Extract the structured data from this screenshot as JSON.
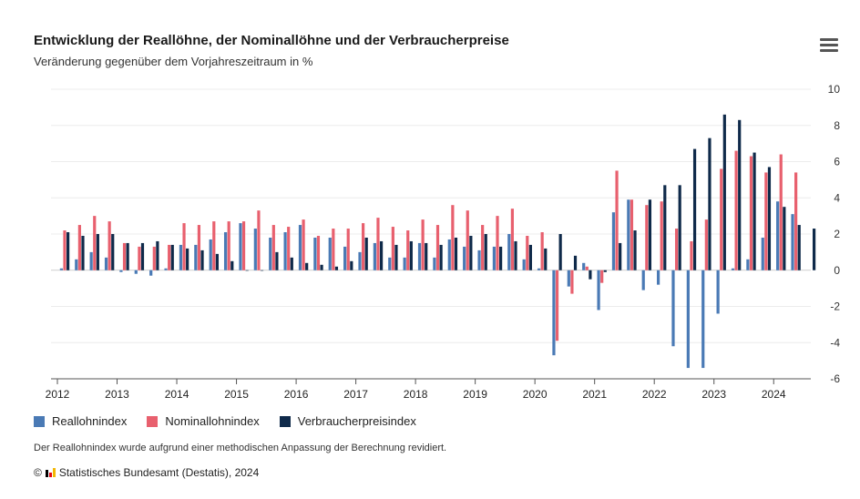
{
  "title": "Entwicklung der Reallöhne, der Nominallöhne und der Verbraucherpreise",
  "subtitle": "Veränderung gegenüber dem Vorjahreszeitraum in %",
  "menu_icon": "hamburger-menu-icon",
  "note": "Der Reallohnindex wurde aufgrund einer methodischen Anpassung der Berechnung revidiert.",
  "credit": "Statistisches Bundesamt (Destatis), 2024",
  "credit_symbol": "©",
  "chart_data": {
    "type": "bar",
    "x_axis_labels": [
      "2012",
      "2013",
      "2014",
      "2015",
      "2016",
      "2017",
      "2018",
      "2019",
      "2020",
      "2021",
      "2022",
      "2023",
      "2024"
    ],
    "categories": [
      "2012 Q1",
      "2012 Q2",
      "2012 Q3",
      "2012 Q4",
      "2013 Q1",
      "2013 Q2",
      "2013 Q3",
      "2013 Q4",
      "2014 Q1",
      "2014 Q2",
      "2014 Q3",
      "2014 Q4",
      "2015 Q1",
      "2015 Q2",
      "2015 Q3",
      "2015 Q4",
      "2016 Q1",
      "2016 Q2",
      "2016 Q3",
      "2016 Q4",
      "2017 Q1",
      "2017 Q2",
      "2017 Q3",
      "2017 Q4",
      "2018 Q1",
      "2018 Q2",
      "2018 Q3",
      "2018 Q4",
      "2019 Q1",
      "2019 Q2",
      "2019 Q3",
      "2019 Q4",
      "2020 Q1",
      "2020 Q2",
      "2020 Q3",
      "2020 Q4",
      "2021 Q1",
      "2021 Q2",
      "2021 Q3",
      "2021 Q4",
      "2022 Q1",
      "2022 Q2",
      "2022 Q3",
      "2022 Q4",
      "2023 Q1",
      "2023 Q2",
      "2023 Q3",
      "2023 Q4",
      "2024 Q1",
      "2024 Q2",
      "2024 Q3"
    ],
    "series": [
      {
        "name": "Reallohnindex",
        "color": "#4a7ab5",
        "values": [
          0.1,
          0.6,
          1.0,
          0.7,
          -0.1,
          -0.2,
          -0.3,
          0.1,
          1.4,
          1.4,
          1.7,
          2.1,
          2.6,
          2.3,
          1.8,
          2.1,
          2.5,
          1.8,
          1.8,
          1.3,
          1.0,
          1.5,
          0.7,
          0.7,
          1.5,
          0.7,
          1.7,
          1.3,
          1.1,
          1.3,
          2.0,
          0.6,
          0.1,
          -4.7,
          -0.9,
          0.4,
          -2.2,
          3.2,
          3.9,
          -1.1,
          -0.8,
          -4.2,
          -5.4,
          -5.4,
          -2.4,
          0.1,
          0.6,
          1.8,
          3.8,
          3.1,
          null
        ]
      },
      {
        "name": "Nominallohnindex",
        "color": "#e8606e",
        "values": [
          2.2,
          2.5,
          3.0,
          2.7,
          1.5,
          1.3,
          1.3,
          1.4,
          2.6,
          2.5,
          2.7,
          2.7,
          2.7,
          3.3,
          2.5,
          2.4,
          2.8,
          1.9,
          2.3,
          2.3,
          2.6,
          2.9,
          2.4,
          2.2,
          2.8,
          2.5,
          3.6,
          3.3,
          2.5,
          3.0,
          3.4,
          1.9,
          2.1,
          -3.9,
          -1.3,
          0.2,
          -0.7,
          5.5,
          3.9,
          3.6,
          3.8,
          2.3,
          1.6,
          2.8,
          5.6,
          6.6,
          6.3,
          5.4,
          6.4,
          5.4,
          null
        ]
      },
      {
        "name": "Verbraucherpreisindex",
        "color": "#0f2a4a",
        "values": [
          2.1,
          1.9,
          2.0,
          2.0,
          1.5,
          1.5,
          1.6,
          1.4,
          1.2,
          1.1,
          0.9,
          0.5,
          0.0,
          0.0,
          1.0,
          0.7,
          0.4,
          0.3,
          0.2,
          0.5,
          1.8,
          1.6,
          1.4,
          1.6,
          1.5,
          1.4,
          1.8,
          1.9,
          2.0,
          1.3,
          1.6,
          1.4,
          1.2,
          2.0,
          0.8,
          -0.5,
          -0.1,
          1.5,
          2.2,
          3.9,
          4.7,
          4.7,
          6.7,
          7.3,
          8.6,
          8.3,
          6.5,
          5.7,
          3.5,
          2.5,
          2.3
        ]
      }
    ],
    "y_axis": {
      "position": "right",
      "min": -6,
      "max": 10,
      "ticks": [
        10,
        8,
        6,
        4,
        2,
        0,
        -2,
        -4,
        -6
      ]
    },
    "grid": true,
    "legend": "bottom-left"
  }
}
